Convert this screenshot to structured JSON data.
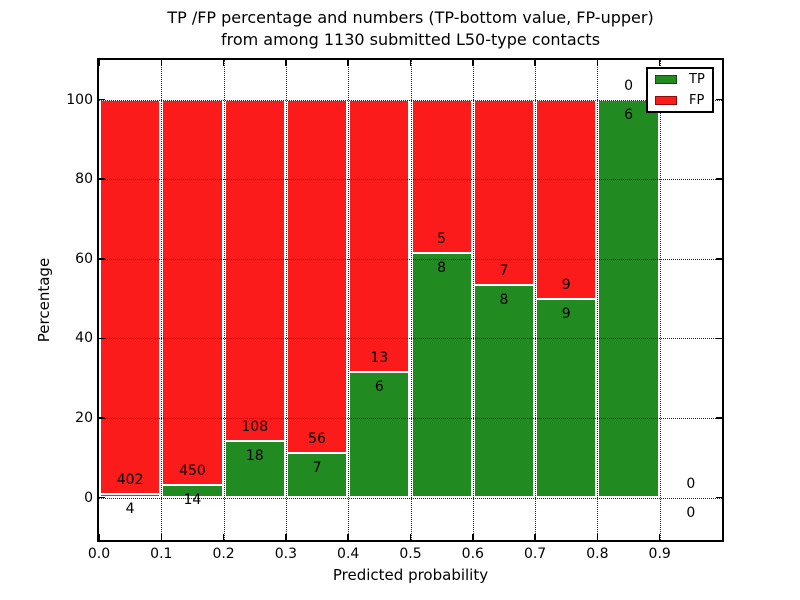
{
  "title": {
    "line1": "TP /FP percentage and numbers (TP-bottom value, FP-upper)",
    "line2": "from among 1130 submitted L50-type contacts"
  },
  "axes": {
    "xlabel": "Predicted probability",
    "ylabel": "Percentage",
    "x_tick_labels": [
      "0.0",
      "0.1",
      "0.2",
      "0.3",
      "0.4",
      "0.5",
      "0.6",
      "0.7",
      "0.8",
      "0.9"
    ],
    "y_tick_labels": [
      "0",
      "20",
      "40",
      "60",
      "80",
      "100"
    ],
    "y_tick_values": [
      0,
      20,
      40,
      60,
      80,
      100
    ],
    "xlim": [
      0.0,
      1.0
    ],
    "ylim": [
      -11,
      110
    ],
    "grid_style": "dotted"
  },
  "legend": {
    "position": "upper-right",
    "items": [
      {
        "label": "TP",
        "color": "#218A21"
      },
      {
        "label": "FP",
        "color": "#FB1B1B"
      }
    ]
  },
  "colors": {
    "tp": "#218A21",
    "fp": "#FB1B1B",
    "bar_edge": "#FFFFFF",
    "grid": "#000000",
    "background": "#FFFFFF"
  },
  "chart_data": {
    "type": "bar",
    "stacking": "percentage",
    "title": "TP /FP percentage and numbers (TP-bottom value, FP-upper) from among 1130 submitted L50-type contacts",
    "xlabel": "Predicted probability",
    "ylabel": "Percentage",
    "categories": [
      "0.0-0.1",
      "0.1-0.2",
      "0.2-0.3",
      "0.3-0.4",
      "0.4-0.5",
      "0.5-0.6",
      "0.6-0.7",
      "0.7-0.8",
      "0.8-0.9",
      "0.9-1.0"
    ],
    "bin_width": 0.1,
    "series": [
      {
        "name": "TP",
        "counts": [
          4,
          14,
          18,
          7,
          6,
          8,
          8,
          9,
          6,
          0
        ]
      },
      {
        "name": "FP",
        "counts": [
          402,
          450,
          108,
          56,
          13,
          5,
          7,
          9,
          0,
          0
        ]
      }
    ],
    "tp_percent": [
      0.985,
      3.017,
      14.286,
      11.111,
      31.579,
      61.538,
      53.333,
      50.0,
      100.0,
      0.0
    ],
    "total_contacts": 1130,
    "label_convention": "TP-bottom value, FP-upper",
    "legend_entries": [
      "TP",
      "FP"
    ]
  }
}
